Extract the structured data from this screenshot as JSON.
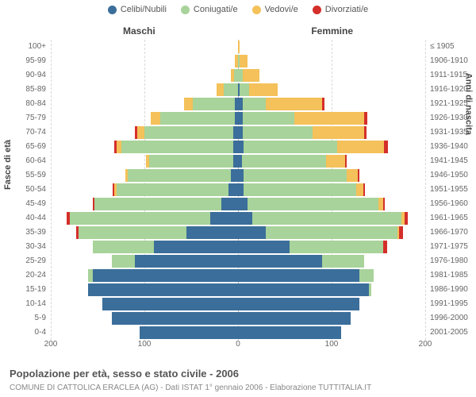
{
  "chart": {
    "type": "population-pyramid",
    "legend": [
      {
        "label": "Celibi/Nubili",
        "color": "#3b6e9a"
      },
      {
        "label": "Coniugati/e",
        "color": "#a8d39a"
      },
      {
        "label": "Vedovi/e",
        "color": "#f4c15a"
      },
      {
        "label": "Divorziati/e",
        "color": "#d42f2a"
      }
    ],
    "side_labels": {
      "male": "Maschi",
      "female": "Femmine"
    },
    "yaxis_left": "Fasce di età",
    "yaxis_right": "Anni di nascita",
    "xaxis": {
      "min": -200,
      "max": 200,
      "ticks": [
        -200,
        -100,
        0,
        100,
        200
      ],
      "tick_labels": [
        "200",
        "100",
        "0",
        "100",
        "200"
      ]
    },
    "grid_color": "#d9d9d9",
    "center_line_color": "#bbbbbb",
    "background": "#ffffff",
    "tick_fontsize": 10,
    "label_fontsize": 11,
    "caption": "Popolazione per età, sesso e stato civile - 2006",
    "subcaption": "COMUNE DI CATTOLICA ERACLEA (AG) - Dati ISTAT 1° gennaio 2006 - Elaborazione TUTTITALIA.IT",
    "rows": [
      {
        "age": "100+",
        "birth": "≤ 1905",
        "m": [
          0,
          0,
          0,
          0
        ],
        "f": [
          0,
          0,
          2,
          0
        ]
      },
      {
        "age": "95-99",
        "birth": "1906-1910",
        "m": [
          0,
          0,
          3,
          0
        ],
        "f": [
          0,
          2,
          8,
          0
        ]
      },
      {
        "age": "90-94",
        "birth": "1911-1915",
        "m": [
          0,
          4,
          4,
          0
        ],
        "f": [
          0,
          5,
          18,
          0
        ]
      },
      {
        "age": "85-89",
        "birth": "1916-1920",
        "m": [
          0,
          15,
          8,
          0
        ],
        "f": [
          2,
          10,
          30,
          0
        ]
      },
      {
        "age": "80-84",
        "birth": "1921-1925",
        "m": [
          3,
          45,
          10,
          0
        ],
        "f": [
          5,
          25,
          60,
          2
        ]
      },
      {
        "age": "75-79",
        "birth": "1926-1930",
        "m": [
          3,
          80,
          10,
          0
        ],
        "f": [
          5,
          55,
          75,
          3
        ]
      },
      {
        "age": "70-74",
        "birth": "1931-1935",
        "m": [
          5,
          95,
          8,
          2
        ],
        "f": [
          5,
          75,
          55,
          2
        ]
      },
      {
        "age": "65-69",
        "birth": "1936-1940",
        "m": [
          5,
          120,
          5,
          2
        ],
        "f": [
          6,
          100,
          50,
          4
        ]
      },
      {
        "age": "60-64",
        "birth": "1941-1945",
        "m": [
          5,
          90,
          3,
          0
        ],
        "f": [
          4,
          90,
          20,
          2
        ]
      },
      {
        "age": "55-59",
        "birth": "1946-1950",
        "m": [
          8,
          110,
          2,
          0
        ],
        "f": [
          6,
          110,
          12,
          2
        ]
      },
      {
        "age": "50-54",
        "birth": "1951-1955",
        "m": [
          10,
          120,
          2,
          2
        ],
        "f": [
          6,
          120,
          8,
          2
        ]
      },
      {
        "age": "45-49",
        "birth": "1956-1960",
        "m": [
          18,
          135,
          0,
          2
        ],
        "f": [
          10,
          140,
          5,
          2
        ]
      },
      {
        "age": "40-44",
        "birth": "1961-1965",
        "m": [
          30,
          150,
          0,
          3
        ],
        "f": [
          15,
          160,
          3,
          3
        ]
      },
      {
        "age": "35-39",
        "birth": "1966-1970",
        "m": [
          55,
          115,
          0,
          3
        ],
        "f": [
          30,
          140,
          2,
          4
        ]
      },
      {
        "age": "30-34",
        "birth": "1971-1975",
        "m": [
          90,
          65,
          0,
          0
        ],
        "f": [
          55,
          100,
          0,
          4
        ]
      },
      {
        "age": "25-29",
        "birth": "1976-1980",
        "m": [
          110,
          25,
          0,
          0
        ],
        "f": [
          90,
          45,
          0,
          0
        ]
      },
      {
        "age": "20-24",
        "birth": "1981-1985",
        "m": [
          155,
          5,
          0,
          0
        ],
        "f": [
          130,
          15,
          0,
          0
        ]
      },
      {
        "age": "15-19",
        "birth": "1986-1990",
        "m": [
          160,
          0,
          0,
          0
        ],
        "f": [
          140,
          2,
          0,
          0
        ]
      },
      {
        "age": "10-14",
        "birth": "1991-1995",
        "m": [
          145,
          0,
          0,
          0
        ],
        "f": [
          130,
          0,
          0,
          0
        ]
      },
      {
        "age": "5-9",
        "birth": "1996-2000",
        "m": [
          135,
          0,
          0,
          0
        ],
        "f": [
          120,
          0,
          0,
          0
        ]
      },
      {
        "age": "0-4",
        "birth": "2001-2005",
        "m": [
          105,
          0,
          0,
          0
        ],
        "f": [
          110,
          0,
          0,
          0
        ]
      }
    ]
  }
}
